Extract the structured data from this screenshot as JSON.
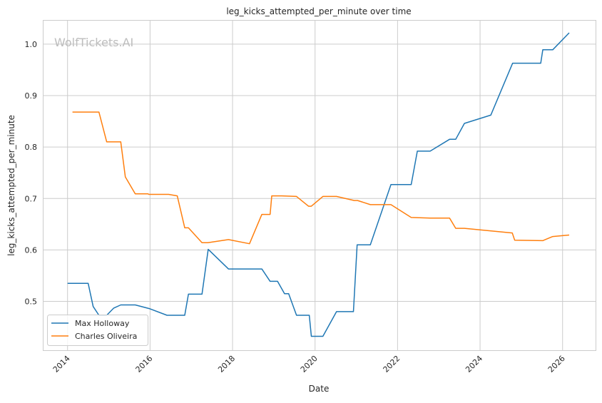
{
  "chart_data": {
    "type": "line",
    "title": "leg_kicks_attempted_per_minute over time",
    "xlabel": "Date",
    "ylabel": "leg_kicks_attempted_per_minute",
    "xlim": [
      2013.4,
      2026.8
    ],
    "ylim": [
      0.405,
      1.047
    ],
    "xticks": [
      2014,
      2016,
      2018,
      2020,
      2022,
      2024,
      2026
    ],
    "xtick_labels": [
      "2014",
      "2016",
      "2018",
      "2020",
      "2022",
      "2024",
      "2026"
    ],
    "yticks": [
      0.5,
      0.6,
      0.7,
      0.8,
      0.9,
      1.0
    ],
    "ytick_labels": [
      "0.5",
      "0.6",
      "0.7",
      "0.8",
      "0.9",
      "1.0"
    ],
    "grid": true,
    "legend_position": "lower-left",
    "watermark": "WolfTickets.AI",
    "series": [
      {
        "name": "Max Holloway",
        "color": "#1f77b4",
        "x": [
          2014.0,
          2014.5,
          2014.62,
          2014.76,
          2014.95,
          2015.12,
          2015.29,
          2015.64,
          2015.98,
          2016.41,
          2016.84,
          2016.93,
          2017.26,
          2017.41,
          2017.9,
          2018.71,
          2018.91,
          2019.09,
          2019.26,
          2019.36,
          2019.55,
          2019.86,
          2019.91,
          2020.19,
          2020.52,
          2020.93,
          2021.02,
          2021.34,
          2021.84,
          2022.33,
          2022.48,
          2022.79,
          2023.26,
          2023.41,
          2023.62,
          2024.26,
          2024.79,
          2025.47,
          2025.52,
          2025.76,
          2026.16
        ],
        "y": [
          0.535,
          0.535,
          0.49,
          0.473,
          0.473,
          0.487,
          0.493,
          0.493,
          0.486,
          0.473,
          0.473,
          0.514,
          0.514,
          0.601,
          0.563,
          0.563,
          0.539,
          0.539,
          0.515,
          0.515,
          0.473,
          0.473,
          0.432,
          0.432,
          0.48,
          0.48,
          0.61,
          0.61,
          0.727,
          0.727,
          0.792,
          0.792,
          0.815,
          0.815,
          0.846,
          0.862,
          0.963,
          0.963,
          0.989,
          0.989,
          1.022
        ]
      },
      {
        "name": "Charles Oliveira",
        "color": "#ff7f0e",
        "x": [
          2014.12,
          2014.76,
          2014.95,
          2015.29,
          2015.4,
          2015.64,
          2015.95,
          2015.97,
          2016.45,
          2016.66,
          2016.84,
          2016.93,
          2017.26,
          2017.4,
          2017.9,
          2018.41,
          2018.71,
          2018.91,
          2018.95,
          2019.19,
          2019.55,
          2019.84,
          2019.91,
          2020.19,
          2020.52,
          2020.95,
          2021.03,
          2021.34,
          2021.84,
          2022.33,
          2022.79,
          2023.26,
          2023.41,
          2023.62,
          2024.78,
          2024.84,
          2025.52,
          2025.76,
          2026.16
        ],
        "y": [
          0.868,
          0.868,
          0.81,
          0.81,
          0.742,
          0.709,
          0.709,
          0.708,
          0.708,
          0.705,
          0.643,
          0.643,
          0.614,
          0.614,
          0.62,
          0.612,
          0.669,
          0.669,
          0.705,
          0.705,
          0.704,
          0.685,
          0.685,
          0.704,
          0.704,
          0.696,
          0.696,
          0.688,
          0.688,
          0.663,
          0.662,
          0.662,
          0.642,
          0.642,
          0.633,
          0.619,
          0.618,
          0.626,
          0.629
        ]
      }
    ]
  }
}
